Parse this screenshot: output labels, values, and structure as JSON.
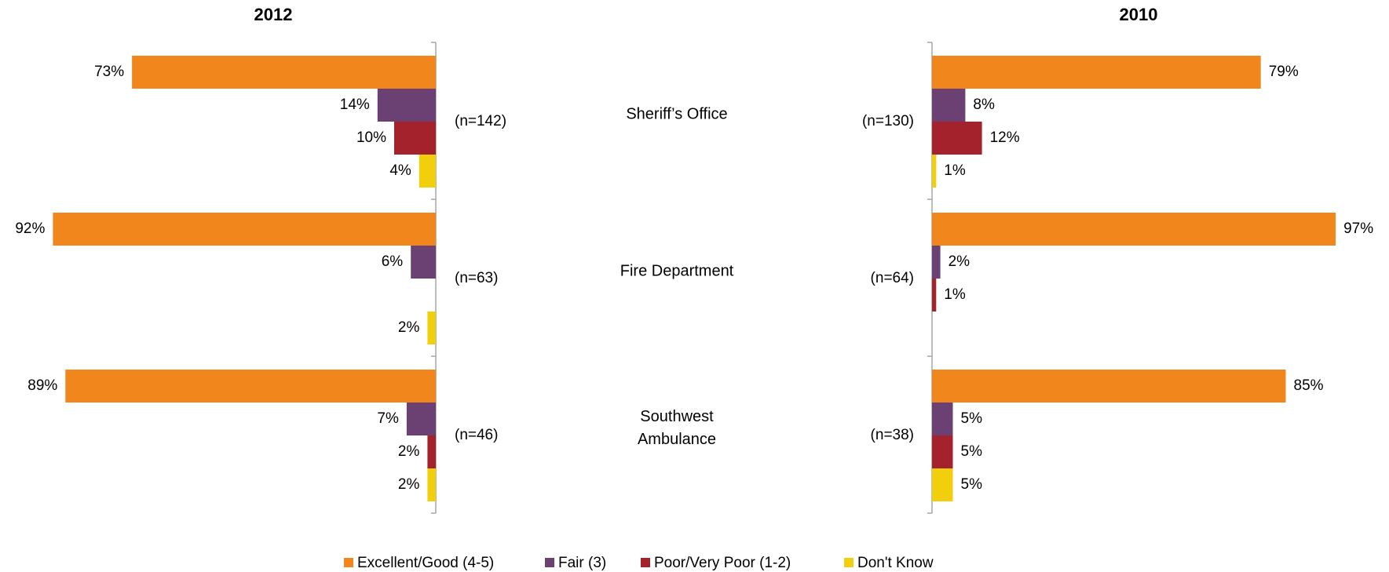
{
  "chart_data": {
    "type": "bar",
    "categories": [
      "Sheriff’s Office",
      "Fire Department",
      "Southwest Ambulance"
    ],
    "series": [
      {
        "name": "Excellent/Good (4-5)",
        "color": "#f0861c"
      },
      {
        "name": "Fair (3)",
        "color": "#6b4173"
      },
      {
        "name": "Poor/Very Poor (1-2)",
        "color": "#a4222b"
      },
      {
        "name": "Don't Know",
        "color": "#f2cf0c"
      }
    ],
    "panels": [
      {
        "title": "2012",
        "direction": "left",
        "sample_sizes": [
          "(n=142)",
          "(n=63)",
          "(n=46)"
        ],
        "values": [
          [
            73,
            92,
            89
          ],
          [
            14,
            6,
            7
          ],
          [
            10,
            null,
            2
          ],
          [
            4,
            2,
            2
          ]
        ],
        "value_labels": [
          [
            "73%",
            "92%",
            "89%"
          ],
          [
            "14%",
            "6%",
            "7%"
          ],
          [
            "10%",
            null,
            "2%"
          ],
          [
            "4%",
            "2%",
            "2%"
          ]
        ]
      },
      {
        "title": "2010",
        "direction": "right",
        "sample_sizes": [
          "(n=130)",
          "(n=64)",
          "(n=38)"
        ],
        "values": [
          [
            79,
            97,
            85
          ],
          [
            8,
            2,
            5
          ],
          [
            12,
            1,
            5
          ],
          [
            1,
            null,
            5
          ]
        ],
        "value_labels": [
          [
            "79%",
            "97%",
            "85%"
          ],
          [
            "8%",
            "2%",
            "5%"
          ],
          [
            "12%",
            "1%",
            "5%"
          ],
          [
            "1%",
            null,
            "5%"
          ]
        ]
      }
    ]
  }
}
